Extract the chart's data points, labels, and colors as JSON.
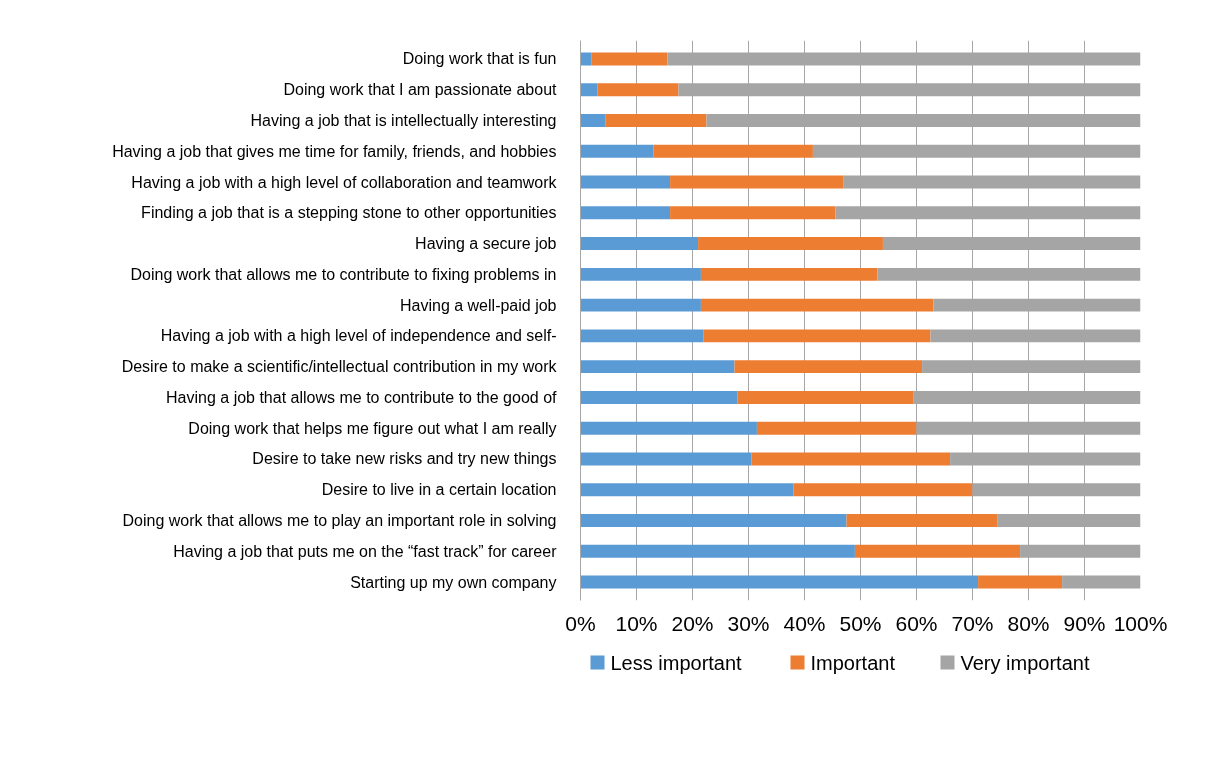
{
  "chart_data": {
    "type": "bar",
    "orientation": "horizontal",
    "stacked": true,
    "categories": [
      "Doing work that is fun",
      "Doing work that I am passionate about",
      "Having a job that is intellectually interesting",
      "Having a job that gives me time for family, friends, and hobbies",
      "Having a job with a high level of collaboration and teamwork",
      "Finding a job that is a stepping stone to other opportunities",
      "Having a secure job",
      "Doing work that allows me to contribute to fixing problems in",
      "Having a well-paid job",
      "Having a job with a high level of independence and self-",
      "Desire to make a scientific/intellectual contribution in my work",
      "Having a job that allows me to contribute to the good of",
      "Doing work that helps me figure out what I am really",
      "Desire to take new risks and try new things",
      "Desire to live in a certain location",
      "Doing work that allows me to play an important role in solving",
      "Having a job that puts me on the “fast track” for career",
      "Starting up my own company"
    ],
    "series": [
      {
        "name": "Less important",
        "color": "#5b9bd5",
        "values": [
          2,
          3,
          4.5,
          13,
          16,
          16,
          21,
          21.5,
          21.5,
          22,
          27.5,
          28,
          31.5,
          30.5,
          38,
          47.5,
          49,
          71
        ]
      },
      {
        "name": "Important",
        "color": "#ed7d31",
        "values": [
          13.5,
          14.5,
          18,
          28.5,
          31,
          29.5,
          33,
          31.5,
          41.5,
          40.5,
          33.5,
          31.5,
          28.5,
          35.5,
          32,
          27,
          29.5,
          15
        ]
      },
      {
        "name": "Very important",
        "color": "#a5a5a5",
        "values": [
          84.5,
          82.5,
          77.5,
          58.5,
          53,
          54.5,
          46,
          47,
          37,
          37.5,
          39,
          40.5,
          40,
          34,
          30,
          25.5,
          21.5,
          14
        ]
      }
    ],
    "xlim": [
      0,
      100
    ],
    "xticks": [
      {
        "value": 0,
        "label": "0%"
      },
      {
        "value": 10,
        "label": "10%"
      },
      {
        "value": 20,
        "label": "20%"
      },
      {
        "value": 30,
        "label": "30%"
      },
      {
        "value": 40,
        "label": "40%"
      },
      {
        "value": 50,
        "label": "50%"
      },
      {
        "value": 60,
        "label": "60%"
      },
      {
        "value": 70,
        "label": "70%"
      },
      {
        "value": 80,
        "label": "80%"
      },
      {
        "value": 90,
        "label": "90%"
      },
      {
        "value": 100,
        "label": "100%"
      }
    ],
    "grid": "x",
    "legend": "bottom"
  }
}
